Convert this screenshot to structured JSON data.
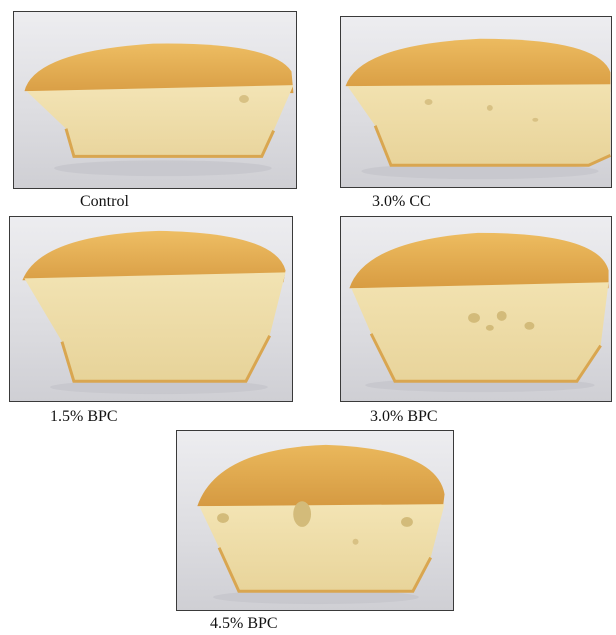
{
  "panels": [
    {
      "id": "control",
      "caption": "Control"
    },
    {
      "id": "cc30",
      "caption": "3.0% CC"
    },
    {
      "id": "bpc15",
      "caption": "1.5% BPC"
    },
    {
      "id": "bpc30",
      "caption": "3.0% BPC"
    },
    {
      "id": "bpc45",
      "caption": "4.5% BPC"
    }
  ],
  "colors": {
    "crust": "#e3ae52",
    "crumb": "#f1e1ae",
    "background": "#dcdce0"
  }
}
